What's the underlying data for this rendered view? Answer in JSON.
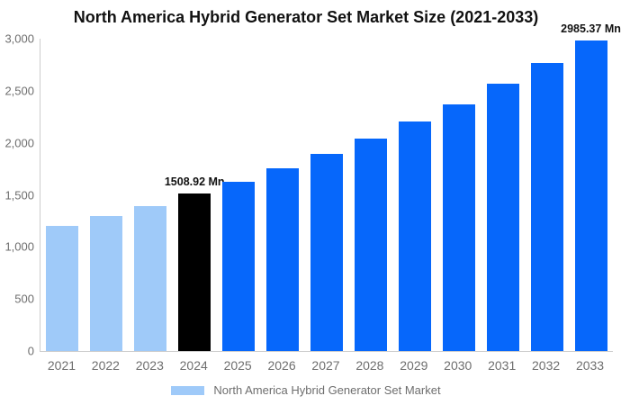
{
  "chart_data": {
    "type": "bar",
    "title": "North America Hybrid Generator Set Market Size (2021-2033)",
    "categories": [
      "2021",
      "2022",
      "2023",
      "2024",
      "2025",
      "2026",
      "2027",
      "2028",
      "2029",
      "2030",
      "2031",
      "2032",
      "2033"
    ],
    "values": [
      1200,
      1295,
      1395,
      1508.92,
      1628,
      1756,
      1894,
      2043,
      2204,
      2372,
      2564,
      2766,
      2985.37
    ],
    "bar_roles": [
      "past",
      "past",
      "past",
      "current",
      "future",
      "future",
      "future",
      "future",
      "future",
      "future",
      "future",
      "future",
      "future"
    ],
    "annotations": [
      {
        "category": "2024",
        "text": "1508.92 Mn"
      },
      {
        "category": "2033",
        "text": "2985.37 Mn"
      }
    ],
    "ylim": [
      0,
      3000
    ],
    "yticks": [
      "0",
      "500",
      "1,000",
      "1,500",
      "2,000",
      "2,500",
      "3,000"
    ],
    "xlabel": "",
    "ylabel": "",
    "grid": false,
    "legend_position": "bottom"
  },
  "colors": {
    "past_bar": "#9FCAF9",
    "current_bar": "#000000",
    "future_bar": "#0667FB",
    "axis_line": "#CCCCCC",
    "tick_text": "#6E6E6E",
    "title_text": "#111111"
  },
  "legend": {
    "label": "North America Hybrid Generator Set Market"
  }
}
